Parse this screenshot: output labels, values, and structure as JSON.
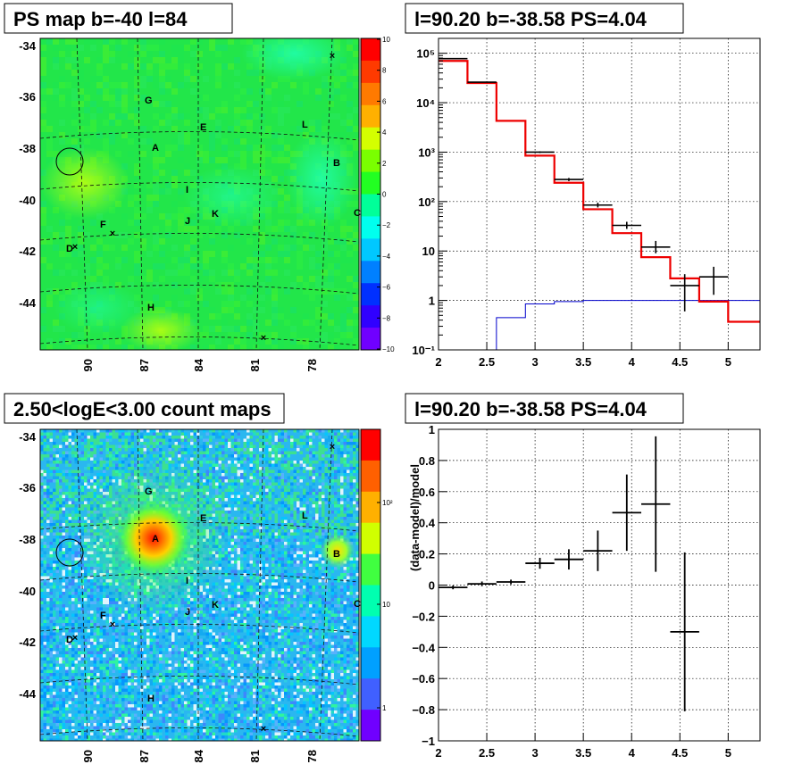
{
  "panels": {
    "ps_map": {
      "title": "PS map b=-40 l=84"
    },
    "spectrum": {
      "title": "l=90.20 b=-38.58 PS=4.04"
    },
    "count_map": {
      "title": "2.50<logE<3.00 count maps"
    },
    "residual": {
      "title": "l=90.20 b=-38.58 PS=4.04"
    }
  },
  "map_axes": {
    "y_labels": [
      "-34",
      "-36",
      "-38",
      "-40",
      "-42",
      "-44"
    ],
    "x_labels": [
      "90",
      "87",
      "84",
      "81",
      "78"
    ]
  },
  "ps_colorbar": {
    "labels": [
      "10",
      "8",
      "6",
      "4",
      "2",
      "0",
      "−2",
      "−4",
      "−6",
      "−8",
      "−10"
    ],
    "colors": [
      "#ff0000",
      "#ff3a00",
      "#ff7a00",
      "#ffb000",
      "#d4ff00",
      "#7aff00",
      "#22ff22",
      "#00ff99",
      "#00ffee",
      "#00c8ff",
      "#0080ff",
      "#0030ff",
      "#3000ff",
      "#7000ff"
    ]
  },
  "count_colorbar": {
    "labels": [
      "10²",
      "10",
      "1"
    ],
    "colors": [
      "#ff0000",
      "#ff6000",
      "#ffb000",
      "#d0ff00",
      "#40ff40",
      "#00ffb0",
      "#00d8ff",
      "#00a0ff",
      "#4060ff",
      "#7000ff"
    ]
  },
  "map_fill_colors": {
    "ps_bg": "#22e64a",
    "count_bg": "#2ab7f0",
    "count_core": "#ff2a00"
  },
  "sources": {
    "A": "A",
    "B": "B",
    "C": "C",
    "D": "D",
    "E": "E",
    "F": "F",
    "G": "G",
    "H": "H",
    "I": "I",
    "J": "J",
    "K": "K",
    "L": "L"
  },
  "chart_data": [
    {
      "type": "step",
      "panel": "spectrum",
      "title": "l=90.20 b=-38.58 PS=4.04",
      "xlim": [
        2,
        5.33
      ],
      "ylim": [
        0.1,
        200000
      ],
      "yscale": "log",
      "x_ticks": [
        "2",
        "2.5",
        "3",
        "3.5",
        "4",
        "4.5",
        "5"
      ],
      "y_ticks": [
        "10⁻¹",
        "1",
        "10",
        "10²",
        "10³",
        "10⁴",
        "10⁵"
      ],
      "bin_edges": [
        2.0,
        2.3,
        2.6,
        2.9,
        3.2,
        3.5,
        3.8,
        4.1,
        4.4,
        4.7,
        5.0,
        5.33
      ],
      "model_red": [
        70000,
        25000,
        4300,
        850,
        240,
        70,
        23,
        7.5,
        2.8,
        0.95,
        0.37
      ],
      "model_blue": [
        0.1,
        0.1,
        0.45,
        0.85,
        0.95,
        1.0,
        1.0,
        1.0,
        1.0,
        1.0,
        1.0
      ],
      "data": [
        {
          "x": 2.15,
          "y": 78000,
          "lo": 77000,
          "hi": 79000
        },
        {
          "x": 2.45,
          "y": 26000,
          "lo": 25500,
          "hi": 26500
        },
        {
          "x": 3.05,
          "y": 1000,
          "lo": 960,
          "hi": 1040
        },
        {
          "x": 3.35,
          "y": 280,
          "lo": 260,
          "hi": 300
        },
        {
          "x": 3.65,
          "y": 85,
          "lo": 76,
          "hi": 95
        },
        {
          "x": 3.95,
          "y": 33,
          "lo": 28,
          "hi": 39
        },
        {
          "x": 4.25,
          "y": 12,
          "lo": 9,
          "hi": 16
        },
        {
          "x": 4.55,
          "y": 2.0,
          "lo": 0.6,
          "hi": 3.4
        },
        {
          "x": 4.85,
          "y": 3.0,
          "lo": 1.3,
          "hi": 4.8
        }
      ]
    },
    {
      "type": "scatter",
      "panel": "residual",
      "title": "l=90.20 b=-38.58 PS=4.04",
      "ylabel": "(data-model)/model",
      "xlim": [
        2,
        5.33
      ],
      "ylim": [
        -1,
        1
      ],
      "x_ticks": [
        2,
        2.5,
        3,
        3.5,
        4,
        4.5,
        5
      ],
      "y_ticks": [
        -1,
        -0.8,
        -0.6,
        -0.4,
        -0.2,
        0,
        0.2,
        0.4,
        0.6,
        0.8,
        1
      ],
      "bin_halfwidth": 0.15,
      "points": [
        {
          "x": 2.15,
          "y": -0.015,
          "err": 0.012
        },
        {
          "x": 2.45,
          "y": 0.008,
          "err": 0.015
        },
        {
          "x": 2.75,
          "y": 0.02,
          "err": 0.015
        },
        {
          "x": 3.05,
          "y": 0.14,
          "err": 0.035
        },
        {
          "x": 3.35,
          "y": 0.165,
          "err": 0.065
        },
        {
          "x": 3.65,
          "y": 0.22,
          "err": 0.13
        },
        {
          "x": 3.95,
          "y": 0.465,
          "err": 0.245
        },
        {
          "x": 4.25,
          "y": 0.52,
          "err": 0.435
        },
        {
          "x": 4.55,
          "y": -0.3,
          "err": 0.51
        }
      ]
    }
  ]
}
